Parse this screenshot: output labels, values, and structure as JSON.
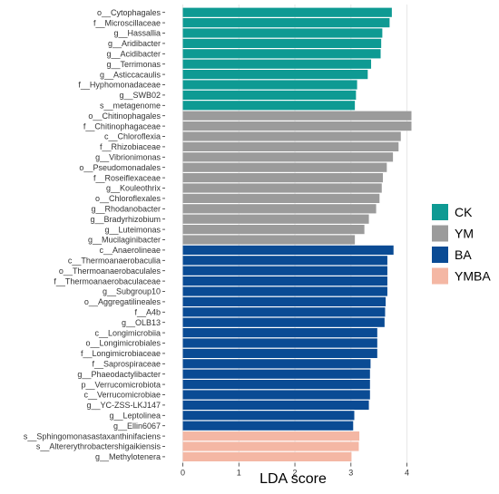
{
  "chart_data": {
    "type": "bar",
    "orientation": "horizontal",
    "title": "",
    "xlabel": "LDA score",
    "ylabel": "",
    "xlim": [
      -0.3,
      4.25
    ],
    "xticks": [
      0,
      1,
      2,
      3,
      4
    ],
    "grid": true,
    "legend_placement": "right",
    "groups": [
      {
        "name": "CK",
        "color": "#0e9a93"
      },
      {
        "name": "YM",
        "color": "#9b9b9b"
      },
      {
        "name": "BA",
        "color": "#0a4b94"
      },
      {
        "name": "YMBA",
        "color": "#f4b7a4"
      }
    ],
    "bars": [
      {
        "label": "o__Cytophagales",
        "value": 3.73,
        "group": "CK"
      },
      {
        "label": "f__Microscillaceae",
        "value": 3.69,
        "group": "CK"
      },
      {
        "label": "g__Hassallia",
        "value": 3.56,
        "group": "CK"
      },
      {
        "label": "g__Aridibacter",
        "value": 3.54,
        "group": "CK"
      },
      {
        "label": "g__Acidibacter",
        "value": 3.53,
        "group": "CK"
      },
      {
        "label": "g__Terrimonas",
        "value": 3.36,
        "group": "CK"
      },
      {
        "label": "g__Asticcacaulis",
        "value": 3.3,
        "group": "CK"
      },
      {
        "label": "f__Hyphomonadaceae",
        "value": 3.11,
        "group": "CK"
      },
      {
        "label": "g__SWB02",
        "value": 3.09,
        "group": "CK"
      },
      {
        "label": "s__metagenome",
        "value": 3.07,
        "group": "CK"
      },
      {
        "label": "o__Chitinophagales",
        "value": 4.08,
        "group": "YM"
      },
      {
        "label": "f__Chitinophagaceae",
        "value": 4.08,
        "group": "YM"
      },
      {
        "label": "c__Chloroflexia",
        "value": 3.89,
        "group": "YM"
      },
      {
        "label": "f__Rhizobiaceae",
        "value": 3.85,
        "group": "YM"
      },
      {
        "label": "g__Vibrionimonas",
        "value": 3.75,
        "group": "YM"
      },
      {
        "label": "o__Pseudomonadales",
        "value": 3.64,
        "group": "YM"
      },
      {
        "label": "f__Roseiflexaceae",
        "value": 3.57,
        "group": "YM"
      },
      {
        "label": "g__Kouleothrix",
        "value": 3.55,
        "group": "YM"
      },
      {
        "label": "o__Chloroflexales",
        "value": 3.51,
        "group": "YM"
      },
      {
        "label": "g__Rhodanobacter",
        "value": 3.45,
        "group": "YM"
      },
      {
        "label": "g__Bradyrhizobium",
        "value": 3.32,
        "group": "YM"
      },
      {
        "label": "g__Luteimonas",
        "value": 3.24,
        "group": "YM"
      },
      {
        "label": "g__Mucilaginibacter",
        "value": 3.07,
        "group": "YM"
      },
      {
        "label": "c__Anaerolineae",
        "value": 3.76,
        "group": "BA"
      },
      {
        "label": "c__Thermoanaerobaculia",
        "value": 3.65,
        "group": "BA"
      },
      {
        "label": "o__Thermoanaerobaculales",
        "value": 3.65,
        "group": "BA"
      },
      {
        "label": "f__Thermoanaerobaculaceae",
        "value": 3.65,
        "group": "BA"
      },
      {
        "label": "g__Subgroup10",
        "value": 3.65,
        "group": "BA"
      },
      {
        "label": "o__Aggregatilineales",
        "value": 3.62,
        "group": "BA"
      },
      {
        "label": "f__A4b",
        "value": 3.61,
        "group": "BA"
      },
      {
        "label": "g__OLB13",
        "value": 3.6,
        "group": "BA"
      },
      {
        "label": "c__Longimicrobiia",
        "value": 3.47,
        "group": "BA"
      },
      {
        "label": "o__Longimicrobiales",
        "value": 3.47,
        "group": "BA"
      },
      {
        "label": "f__Longimicrobiaceae",
        "value": 3.47,
        "group": "BA"
      },
      {
        "label": "f__Saprospiraceae",
        "value": 3.35,
        "group": "BA"
      },
      {
        "label": "g__Phaeodactylibacter",
        "value": 3.34,
        "group": "BA"
      },
      {
        "label": "p__Verrucomicrobiota",
        "value": 3.34,
        "group": "BA"
      },
      {
        "label": "c__Verrucomicrobiae",
        "value": 3.34,
        "group": "BA"
      },
      {
        "label": "g__YC-ZSS-LKJ147",
        "value": 3.32,
        "group": "BA"
      },
      {
        "label": "g__Leptolinea",
        "value": 3.06,
        "group": "BA"
      },
      {
        "label": "g__Ellin6067",
        "value": 3.04,
        "group": "BA"
      },
      {
        "label": "s__Sphingomonasastaxanthinifaciens",
        "value": 3.15,
        "group": "YMBA"
      },
      {
        "label": "s__Altererythrobactershigaikiensis",
        "value": 3.14,
        "group": "YMBA"
      },
      {
        "label": "g__Methylotenera",
        "value": 3.01,
        "group": "YMBA"
      }
    ]
  }
}
